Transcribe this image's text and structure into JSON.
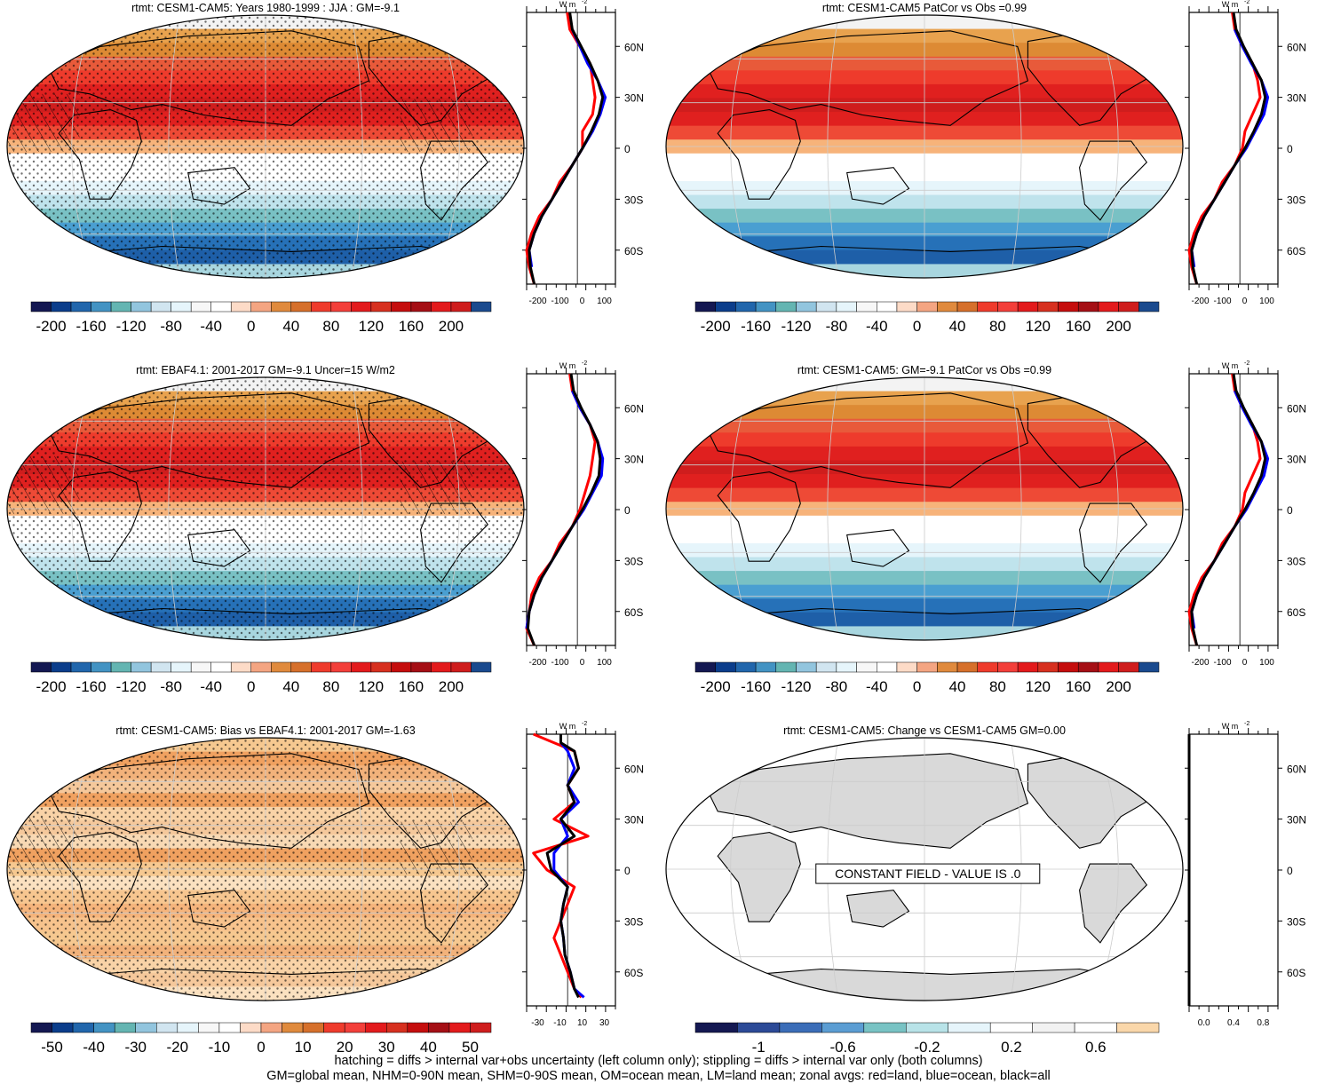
{
  "panels": [
    {
      "title": "rtmt: CESM1-CAM5: Years 1980-1999 : JJA : GM=-9.1",
      "colorbar_ticks": [
        "-200",
        "-160",
        "-120",
        "-80",
        "-40",
        "0",
        "40",
        "80",
        "120",
        "160",
        "200"
      ],
      "hatching": true,
      "stippling": true,
      "zonal_x_ticks": [
        "-200",
        "-100",
        "0",
        "100"
      ],
      "zonal_unit": "W m",
      "zonal_unit_exp": "-2"
    },
    {
      "title": "rtmt: CESM1-CAM5 PatCor vs Obs =0.99",
      "colorbar_ticks": [
        "-200",
        "-160",
        "-120",
        "-80",
        "-40",
        "0",
        "40",
        "80",
        "120",
        "160",
        "200"
      ],
      "hatching": false,
      "stippling": false,
      "zonal_x_ticks": [
        "-200",
        "-100",
        "0",
        "100"
      ],
      "zonal_unit": "W m",
      "zonal_unit_exp": "-2"
    },
    {
      "title": "rtmt: EBAF4.1: 2001-2017 GM=-9.1 Uncer=15 W/m2",
      "colorbar_ticks": [
        "-200",
        "-160",
        "-120",
        "-80",
        "-40",
        "0",
        "40",
        "80",
        "120",
        "160",
        "200"
      ],
      "hatching": true,
      "stippling": true,
      "zonal_x_ticks": [
        "-200",
        "-100",
        "0",
        "100"
      ],
      "zonal_unit": "W m",
      "zonal_unit_exp": "-2"
    },
    {
      "title": "rtmt: CESM1-CAM5: GM=-9.1 PatCor vs Obs =0.99",
      "colorbar_ticks": [
        "-200",
        "-160",
        "-120",
        "-80",
        "-40",
        "0",
        "40",
        "80",
        "120",
        "160",
        "200"
      ],
      "hatching": false,
      "stippling": false,
      "zonal_x_ticks": [
        "-200",
        "-100",
        "0",
        "100"
      ],
      "zonal_unit": "W m",
      "zonal_unit_exp": "-2"
    },
    {
      "title": "rtmt: CESM1-CAM5: Bias vs EBAF4.1: 2001-2017 GM=-1.63",
      "colorbar_ticks": [
        "-50",
        "-40",
        "-30",
        "-20",
        "-10",
        "0",
        "10",
        "20",
        "30",
        "40",
        "50"
      ],
      "hatching": true,
      "stippling": true,
      "zonal_x_ticks": [
        "-30",
        "-10",
        "10",
        "30"
      ],
      "zonal_unit": "W m",
      "zonal_unit_exp": "-2"
    },
    {
      "title": "rtmt: CESM1-CAM5: Change vs CESM1-CAM5 GM=0.00",
      "colorbar_ticks": [
        "-1",
        "-0.6",
        "-0.2",
        "0.2",
        "0.6"
      ],
      "constant_label": "CONSTANT FIELD - VALUE IS .0",
      "hatching": false,
      "stippling": false,
      "zonal_x_ticks": [
        "0.0",
        "0.4",
        "0.8"
      ],
      "zonal_unit": "W m",
      "zonal_unit_exp": "-2"
    }
  ],
  "lat_tick_labels": [
    "60N",
    "30N",
    "0",
    "30S",
    "60S"
  ],
  "colors": {
    "full_palette": [
      "#141852",
      "#0b3d8b",
      "#2166ac",
      "#4393c3",
      "#64b5b2",
      "#92c5de",
      "#d1e5f0",
      "#e6f5fb",
      "#f7f7f7",
      "#ffffff",
      "#fddbc7",
      "#f4a582",
      "#e08a3d",
      "#d6702b",
      "#ef3b2c",
      "#f33f3a",
      "#e31a1c",
      "#d7301f",
      "#c50d0d",
      "#a50f15",
      "#e31a1c",
      "#cf1d1d",
      "#1a4a8e"
    ],
    "diff_palette": [
      "#141852",
      "#2c4a97",
      "#3b6db8",
      "#5b9dd3",
      "#78c3c4",
      "#b8e3e8",
      "#e6f5fb",
      "#ffffff",
      "#f2f2f2",
      "#ffffff",
      "#fad7aa"
    ],
    "land": "#d9d9d9",
    "red_line": "#ff0000",
    "blue_line": "#0000ff",
    "black_line": "#000000"
  },
  "footer": {
    "line1": "hatching = diffs > internal var+obs uncertainty (left column only); stippling = diffs > internal var only (both columns)",
    "line2": "GM=global mean, NHM=0-90N mean, SHM=0-90S mean, OM=ocean mean, LM=land mean; zonal avgs: red=land, blue=ocean, black=all"
  },
  "chart_data": [
    {
      "type": "heatmap",
      "title": "rtmt: CESM1-CAM5: Years 1980-1999 : JJA : GM=-9.1",
      "colorbar": [
        -200,
        -160,
        -120,
        -80,
        -40,
        0,
        40,
        80,
        120,
        160,
        200
      ],
      "zonal_mean": {
        "lat": [
          80,
          70,
          60,
          50,
          40,
          30,
          20,
          10,
          0,
          -10,
          -20,
          -30,
          -40,
          -50,
          -60,
          -70,
          -80
        ],
        "land": [
          -40,
          -30,
          10,
          50,
          60,
          70,
          60,
          20,
          20,
          -20,
          -70,
          -100,
          -150,
          -180,
          -200,
          -190,
          -170
        ],
        "ocean": [
          null,
          -20,
          10,
          40,
          80,
          110,
          90,
          60,
          20,
          -20,
          -60,
          -100,
          -140,
          -170,
          -190,
          -180,
          null
        ],
        "all": [
          -30,
          -20,
          15,
          50,
          80,
          100,
          85,
          55,
          20,
          -20,
          -60,
          -100,
          -140,
          -170,
          -190,
          -185,
          -170
        ],
        "xlim": [
          -200,
          150
        ]
      }
    },
    {
      "type": "heatmap",
      "title": "rtmt: CESM1-CAM5 PatCor vs Obs =0.99",
      "colorbar": [
        -200,
        -160,
        -120,
        -80,
        -40,
        0,
        40,
        80,
        120,
        160,
        200
      ],
      "zonal_mean": {
        "lat": [
          80,
          70,
          60,
          50,
          40,
          30,
          20,
          10,
          0,
          -10,
          -20,
          -30,
          -40,
          -50,
          -60,
          -70,
          -80
        ],
        "land": [
          -30,
          -20,
          10,
          50,
          70,
          80,
          50,
          20,
          10,
          -20,
          -70,
          -100,
          -150,
          -180,
          -200,
          -190,
          -170
        ],
        "ocean": [
          null,
          -20,
          10,
          45,
          85,
          110,
          95,
          60,
          25,
          -20,
          -60,
          -100,
          -140,
          -170,
          -190,
          -180,
          null
        ],
        "all": [
          -25,
          -15,
          15,
          50,
          85,
          100,
          85,
          55,
          20,
          -20,
          -60,
          -100,
          -140,
          -170,
          -190,
          -185,
          -170
        ],
        "xlim": [
          -200,
          150
        ]
      }
    },
    {
      "type": "heatmap",
      "title": "rtmt: EBAF4.1: 2001-2017 GM=-9.1 Uncer=15 W/m2",
      "colorbar": [
        -200,
        -160,
        -120,
        -80,
        -40,
        0,
        40,
        80,
        120,
        160,
        200
      ],
      "zonal_mean": {
        "lat": [
          80,
          70,
          60,
          50,
          40,
          30,
          20,
          10,
          0,
          -10,
          -20,
          -30,
          -40,
          -50,
          -60,
          -70,
          -80
        ],
        "land": [
          -30,
          -20,
          10,
          50,
          70,
          60,
          50,
          30,
          10,
          -20,
          -70,
          -100,
          -150,
          -180,
          -190,
          -200,
          -170
        ],
        "ocean": [
          null,
          -20,
          10,
          50,
          80,
          100,
          95,
          60,
          25,
          -20,
          -60,
          -100,
          -140,
          -170,
          -190,
          -200,
          null
        ],
        "all": [
          -25,
          -15,
          15,
          50,
          80,
          90,
          85,
          55,
          20,
          -20,
          -60,
          -100,
          -140,
          -170,
          -190,
          -195,
          -170
        ],
        "xlim": [
          -200,
          150
        ]
      }
    },
    {
      "type": "heatmap",
      "title": "rtmt: CESM1-CAM5: GM=-9.1 PatCor vs Obs =0.99",
      "colorbar": [
        -200,
        -160,
        -120,
        -80,
        -40,
        0,
        40,
        80,
        120,
        160,
        200
      ],
      "zonal_mean": {
        "lat": [
          80,
          70,
          60,
          50,
          40,
          30,
          20,
          10,
          0,
          -10,
          -20,
          -30,
          -40,
          -50,
          -60,
          -70,
          -80
        ],
        "land": [
          -30,
          -20,
          10,
          50,
          70,
          80,
          50,
          20,
          10,
          -20,
          -70,
          -100,
          -150,
          -180,
          -200,
          -190,
          -170
        ],
        "ocean": [
          null,
          -20,
          10,
          45,
          85,
          110,
          95,
          60,
          25,
          -20,
          -60,
          -100,
          -140,
          -170,
          -190,
          -180,
          null
        ],
        "all": [
          -25,
          -15,
          15,
          50,
          85,
          100,
          85,
          55,
          20,
          -20,
          -60,
          -100,
          -140,
          -170,
          -190,
          -185,
          -170
        ],
        "xlim": [
          -200,
          150
        ]
      }
    },
    {
      "type": "heatmap",
      "title": "rtmt: CESM1-CAM5: Bias vs EBAF4.1: 2001-2017 GM=-1.63",
      "colorbar": [
        -50,
        -40,
        -30,
        -20,
        -10,
        0,
        10,
        20,
        30,
        40,
        50
      ],
      "zonal_mean": {
        "lat": [
          80,
          75,
          70,
          60,
          50,
          40,
          30,
          20,
          10,
          0,
          -10,
          -20,
          -30,
          -40,
          -50,
          -60,
          -70,
          -75
        ],
        "land": [
          -25,
          -10,
          5,
          8,
          0,
          5,
          -10,
          15,
          -25,
          -15,
          5,
          0,
          -5,
          -10,
          -5,
          0,
          5,
          10
        ],
        "ocean": [
          null,
          -5,
          0,
          5,
          0,
          8,
          -5,
          0,
          -10,
          -10,
          0,
          -3,
          -5,
          -3,
          -2,
          2,
          5,
          12
        ],
        "all": [
          -5,
          -5,
          5,
          8,
          0,
          5,
          -5,
          5,
          -15,
          -12,
          0,
          -3,
          -5,
          -3,
          -2,
          2,
          5,
          8
        ],
        "xlim": [
          -30,
          35
        ]
      }
    },
    {
      "type": "heatmap",
      "title": "rtmt: CESM1-CAM5: Change vs CESM1-CAM5 GM=0.00",
      "colorbar": [
        -1,
        -0.6,
        -0.2,
        0.2,
        0.6
      ],
      "annotation": "CONSTANT FIELD - VALUE IS .0",
      "zonal_mean": {
        "lat": [
          80,
          60,
          30,
          0,
          -30,
          -60,
          -80
        ],
        "land": [
          0,
          0,
          0,
          0,
          0,
          0,
          0
        ],
        "ocean": [
          0,
          0,
          0,
          0,
          0,
          0,
          0
        ],
        "all": [
          0,
          0,
          0,
          0,
          0,
          0,
          0
        ],
        "xlim": [
          0,
          1
        ]
      }
    }
  ]
}
